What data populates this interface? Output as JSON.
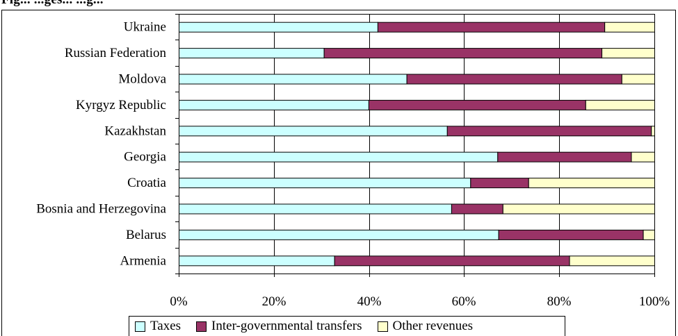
{
  "header": {
    "caption_fragment": "Fig... ...ges... ...g..."
  },
  "chart_data": {
    "type": "bar",
    "orientation": "horizontal",
    "stacked": "percent",
    "categories": [
      "Ukraine",
      "Russian Federation",
      "Moldova",
      "Kyrgyz Republic",
      "Kazakhstan",
      "Georgia",
      "Croatia",
      "Bosnia and Herzegovina",
      "Belarus",
      "Armenia"
    ],
    "series": [
      {
        "name": "Taxes",
        "color": "#ccffff",
        "values": [
          41.8,
          30.5,
          47.9,
          39.9,
          56.4,
          67.0,
          61.3,
          57.3,
          67.2,
          32.7
        ]
      },
      {
        "name": "Inter-governmental transfers",
        "color": "#993366",
        "values": [
          47.7,
          58.4,
          45.2,
          45.6,
          42.9,
          28.1,
          12.2,
          10.8,
          30.4,
          49.4
        ]
      },
      {
        "name": "Other revenues",
        "color": "#ffffcc",
        "values": [
          10.5,
          11.1,
          6.9,
          14.5,
          0.7,
          4.9,
          26.5,
          31.9,
          2.4,
          17.9
        ]
      }
    ],
    "x_ticks": [
      "0%",
      "20%",
      "40%",
      "60%",
      "80%",
      "100%"
    ],
    "xlim": [
      0,
      100
    ],
    "grid": "vertical",
    "legend_position": "bottom"
  }
}
